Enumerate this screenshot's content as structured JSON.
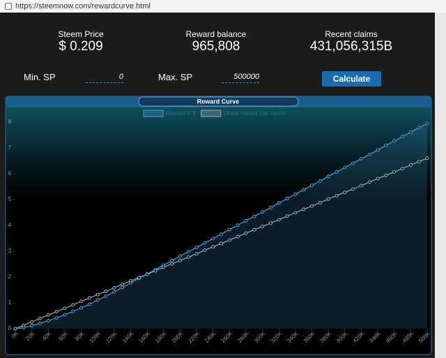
{
  "browser": {
    "url": "https://steemnow.com/rewardcurve.html"
  },
  "stats": [
    {
      "label": "Steem Price",
      "value": "$ 0.209"
    },
    {
      "label": "Reward balance",
      "value": "965,808"
    },
    {
      "label": "Recent claims",
      "value": "431,056,315B"
    }
  ],
  "inputs": [
    {
      "label": "Min. SP",
      "value": "0"
    },
    {
      "label": "Max. SP",
      "value": "500000"
    }
  ],
  "button": "Calculate",
  "chart_data": {
    "type": "line",
    "title": "Reward Curve",
    "x": [
      0,
      10000,
      20000,
      30000,
      40000,
      50000,
      60000,
      70000,
      80000,
      90000,
      100000,
      110000,
      120000,
      130000,
      140000,
      150000,
      160000,
      170000,
      180000,
      190000,
      200000,
      210000,
      220000,
      230000,
      240000,
      250000,
      260000,
      270000,
      280000,
      290000,
      300000,
      310000,
      320000,
      330000,
      340000,
      350000,
      360000,
      370000,
      380000,
      390000,
      400000,
      410000,
      420000,
      430000,
      440000,
      450000,
      460000,
      470000,
      480000,
      490000,
      500000
    ],
    "series": [
      {
        "name": "Reward in $",
        "color": "#4a9fd8",
        "values": [
          0,
          0.04,
          0.12,
          0.21,
          0.31,
          0.42,
          0.54,
          0.67,
          0.81,
          0.95,
          1.11,
          1.26,
          1.43,
          1.6,
          1.77,
          1.95,
          2.12,
          2.29,
          2.46,
          2.64,
          2.81,
          2.98,
          3.15,
          3.32,
          3.49,
          3.66,
          3.84,
          4.01,
          4.18,
          4.35,
          4.52,
          4.69,
          4.87,
          5.04,
          5.21,
          5.38,
          5.55,
          5.72,
          5.9,
          6.07,
          6.24,
          6.41,
          6.58,
          6.75,
          6.92,
          7.1,
          7.27,
          7.44,
          7.61,
          7.78,
          7.95
        ]
      },
      {
        "name": "Linear reward (old curve)",
        "color": "#9aabb3",
        "values": [
          0,
          0.13,
          0.26,
          0.4,
          0.53,
          0.66,
          0.79,
          0.92,
          1.06,
          1.19,
          1.32,
          1.45,
          1.58,
          1.72,
          1.85,
          1.98,
          2.11,
          2.24,
          2.38,
          2.51,
          2.64,
          2.77,
          2.9,
          3.04,
          3.17,
          3.3,
          3.43,
          3.56,
          3.7,
          3.83,
          3.96,
          4.09,
          4.22,
          4.36,
          4.49,
          4.62,
          4.75,
          4.88,
          5.02,
          5.15,
          5.28,
          5.41,
          5.54,
          5.68,
          5.81,
          5.94,
          6.07,
          6.2,
          6.34,
          6.47,
          6.6
        ]
      }
    ],
    "xlim": [
      0,
      500000
    ],
    "xticks": [
      {
        "value": 0,
        "label": "0K"
      },
      {
        "value": 20000,
        "label": "20K"
      },
      {
        "value": 40000,
        "label": "40K"
      },
      {
        "value": 60000,
        "label": "60K"
      },
      {
        "value": 80000,
        "label": "80K"
      },
      {
        "value": 100000,
        "label": "100K"
      },
      {
        "value": 120000,
        "label": "120K"
      },
      {
        "value": 140000,
        "label": "140K"
      },
      {
        "value": 160000,
        "label": "160K"
      },
      {
        "value": 180000,
        "label": "180K"
      },
      {
        "value": 200000,
        "label": "200K"
      },
      {
        "value": 220000,
        "label": "220K"
      },
      {
        "value": 240000,
        "label": "240K"
      },
      {
        "value": 260000,
        "label": "260K"
      },
      {
        "value": 280000,
        "label": "280K"
      },
      {
        "value": 300000,
        "label": "300K"
      },
      {
        "value": 320000,
        "label": "320K"
      },
      {
        "value": 340000,
        "label": "340K"
      },
      {
        "value": 360000,
        "label": "360K"
      },
      {
        "value": 380000,
        "label": "380K"
      },
      {
        "value": 400000,
        "label": "400K"
      },
      {
        "value": 420000,
        "label": "420K"
      },
      {
        "value": 440000,
        "label": "440K"
      },
      {
        "value": 460000,
        "label": "460K"
      },
      {
        "value": 480000,
        "label": "480K"
      },
      {
        "value": 500000,
        "label": "500K"
      }
    ],
    "ylim": [
      0,
      8
    ],
    "yticks": [
      0,
      1,
      2,
      3,
      4,
      5,
      6,
      7,
      8
    ]
  }
}
